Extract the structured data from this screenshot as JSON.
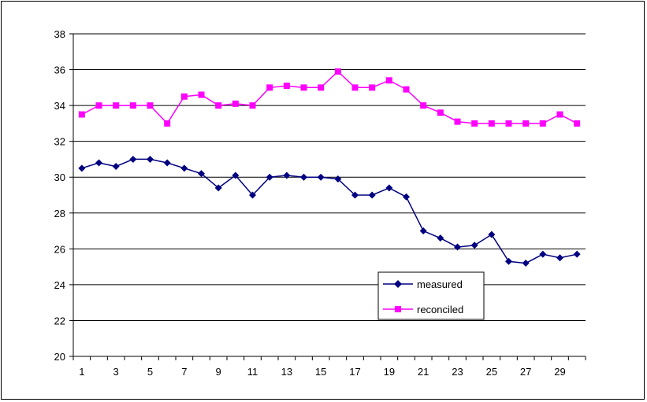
{
  "chart_data": {
    "type": "line",
    "title": "",
    "xlabel": "",
    "ylabel": "",
    "x": [
      1,
      2,
      3,
      4,
      5,
      6,
      7,
      8,
      9,
      10,
      11,
      12,
      13,
      14,
      15,
      16,
      17,
      18,
      19,
      20,
      21,
      22,
      23,
      24,
      25,
      26,
      27,
      28,
      29,
      30
    ],
    "x_tick_labels": [
      "1",
      "3",
      "5",
      "7",
      "9",
      "11",
      "13",
      "15",
      "17",
      "19",
      "21",
      "23",
      "25",
      "27",
      "29"
    ],
    "y_tick_labels": [
      "20",
      "22",
      "24",
      "26",
      "28",
      "30",
      "32",
      "34",
      "36",
      "38"
    ],
    "ylim": [
      20,
      38
    ],
    "y_tick_step": 2,
    "grid": "horizontal",
    "legend_position": "lower-right",
    "series": [
      {
        "name": "measured",
        "color": "#000080",
        "marker": "diamond",
        "values": [
          30.5,
          30.8,
          30.6,
          31.0,
          31.0,
          30.8,
          30.5,
          30.2,
          29.4,
          30.1,
          29.0,
          30.0,
          30.1,
          30.0,
          30.0,
          29.9,
          29.0,
          29.0,
          29.4,
          28.9,
          27.0,
          26.6,
          26.1,
          26.2,
          26.8,
          25.3,
          25.2,
          25.7,
          25.5,
          25.7
        ]
      },
      {
        "name": "reconciled",
        "color": "#ff00ff",
        "marker": "square",
        "values": [
          33.5,
          34.0,
          34.0,
          34.0,
          34.0,
          33.0,
          34.5,
          34.6,
          34.0,
          34.1,
          34.0,
          35.0,
          35.1,
          35.0,
          35.0,
          35.9,
          35.0,
          35.0,
          35.4,
          34.9,
          34.0,
          33.6,
          33.1,
          33.0,
          33.0,
          33.0,
          33.0,
          33.0,
          33.5,
          33.0
        ]
      }
    ]
  }
}
